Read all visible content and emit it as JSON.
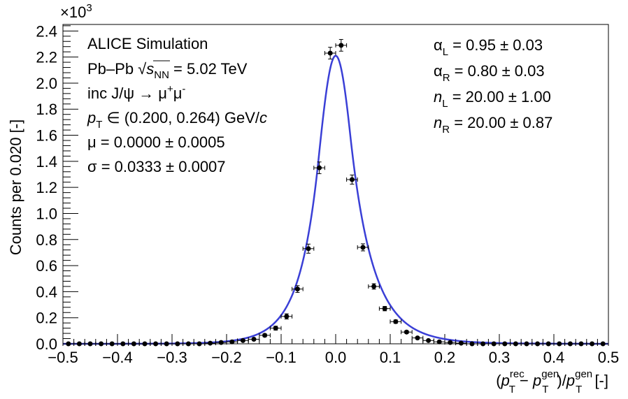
{
  "chart_data": {
    "type": "scatter",
    "y_multiplier": "×10",
    "y_multiplier_exp": "3",
    "ylabel": "Counts per 0.020 [-]",
    "xlabel": {
      "open": "(",
      "p1": "p",
      "p1_sup": "rec",
      "p1_sub": "T",
      "minus": " − ",
      "p2": "p",
      "p2_sup": "gen",
      "p2_sub": "T",
      "close_div": ")/",
      "p3": "p",
      "p3_sup": "gen",
      "p3_sub": "T",
      "unit": " [-]"
    },
    "xlim": [
      -0.5,
      0.5
    ],
    "ylim": [
      0,
      2.45
    ],
    "x_ticks": [
      -0.5,
      -0.4,
      -0.3,
      -0.2,
      -0.1,
      0.0,
      0.1,
      0.2,
      0.3,
      0.4,
      0.5
    ],
    "x_tick_labels": [
      "−0.5",
      "−0.4",
      "−0.3",
      "−0.2",
      "−0.1",
      "0.0",
      "0.1",
      "0.2",
      "0.3",
      "0.4",
      "0.5"
    ],
    "y_ticks": [
      0.0,
      0.2,
      0.4,
      0.6,
      0.8,
      1.0,
      1.2,
      1.4,
      1.6,
      1.8,
      2.0,
      2.2,
      2.4
    ],
    "y_tick_labels": [
      "0.0",
      "0.2",
      "0.4",
      "0.6",
      "0.8",
      "1.0",
      "1.2",
      "1.4",
      "1.6",
      "1.8",
      "2.0",
      "2.2",
      "2.4"
    ],
    "bin_width": 0.02,
    "series": [
      {
        "type": "points",
        "color": "#000000",
        "x": [
          -0.49,
          -0.47,
          -0.45,
          -0.43,
          -0.41,
          -0.39,
          -0.37,
          -0.35,
          -0.33,
          -0.31,
          -0.29,
          -0.27,
          -0.25,
          -0.23,
          -0.21,
          -0.19,
          -0.17,
          -0.15,
          -0.13,
          -0.11,
          -0.09,
          -0.07,
          -0.05,
          -0.03,
          -0.01,
          0.01,
          0.03,
          0.05,
          0.07,
          0.09,
          0.11,
          0.13,
          0.15,
          0.17,
          0.19,
          0.21,
          0.23,
          0.25,
          0.27,
          0.29,
          0.31,
          0.33,
          0.35,
          0.37,
          0.39,
          0.41,
          0.43,
          0.45,
          0.47,
          0.49
        ],
        "y": [
          0.0,
          0.0,
          0.0,
          0.0,
          0.0,
          0.0,
          0.0,
          0.0,
          0.0,
          0.0,
          0.0,
          0.0,
          0.0,
          0.005,
          0.01,
          0.015,
          0.025,
          0.035,
          0.065,
          0.12,
          0.21,
          0.42,
          0.73,
          1.35,
          2.23,
          2.29,
          1.26,
          0.74,
          0.44,
          0.27,
          0.17,
          0.09,
          0.045,
          0.025,
          0.015,
          0.01,
          0.005,
          0.0,
          0.0,
          0.0,
          0.0,
          0.0,
          0.0,
          0.0,
          0.0,
          0.0,
          0.0,
          0.0,
          0.0,
          0.0
        ],
        "yerr": [
          0.003,
          0.003,
          0.003,
          0.003,
          0.003,
          0.003,
          0.003,
          0.003,
          0.003,
          0.003,
          0.003,
          0.003,
          0.003,
          0.004,
          0.005,
          0.006,
          0.007,
          0.008,
          0.011,
          0.015,
          0.02,
          0.026,
          0.035,
          0.045,
          0.045,
          0.045,
          0.035,
          0.027,
          0.021,
          0.017,
          0.013,
          0.01,
          0.007,
          0.006,
          0.005,
          0.004,
          0.003,
          0.003,
          0.003,
          0.003,
          0.003,
          0.003,
          0.003,
          0.003,
          0.003,
          0.003,
          0.003,
          0.003,
          0.003,
          0.003
        ]
      },
      {
        "type": "line",
        "color": "#3a3fd6",
        "function": "double-sided crystal ball",
        "mean": 0.0,
        "sigma": 0.0333,
        "alpha_left": 0.95,
        "alpha_right": 0.8,
        "n_left": 20.0,
        "n_right": 20.0,
        "peak": 2.21
      }
    ],
    "annotations_left": [
      {
        "id": "alice",
        "text": "ALICE Simulation"
      },
      {
        "id": "system",
        "pre": "Pb–Pb ",
        "sqrt": "√",
        "s": "s",
        "s_sub": "NN",
        "post": " = 5.02 TeV"
      },
      {
        "id": "decay",
        "pre": "inc J/ψ → μ",
        "sup1": "+",
        "mid": "μ",
        "sup2": "-"
      },
      {
        "id": "pt",
        "p": "p",
        "p_sub": "T",
        "mid": " ∈ (0.200, 0.264) GeV/",
        "c": "c"
      },
      {
        "id": "mu",
        "text": "μ = 0.0000 ± 0.0005"
      },
      {
        "id": "sigma",
        "text": "σ = 0.0333 ± 0.0007"
      }
    ],
    "annotations_right": [
      {
        "id": "alpha-l",
        "sym": "α",
        "sub": "L",
        "val": " = 0.95 ± 0.03"
      },
      {
        "id": "alpha-r",
        "sym": "α",
        "sub": "R",
        "val": " = 0.80 ± 0.03"
      },
      {
        "id": "n-l",
        "sym": "n",
        "sub": "L",
        "val": " = 20.00 ± 1.00"
      },
      {
        "id": "n-r",
        "sym": "n",
        "sub": "R",
        "val": " = 20.00 ± 0.87"
      }
    ]
  }
}
